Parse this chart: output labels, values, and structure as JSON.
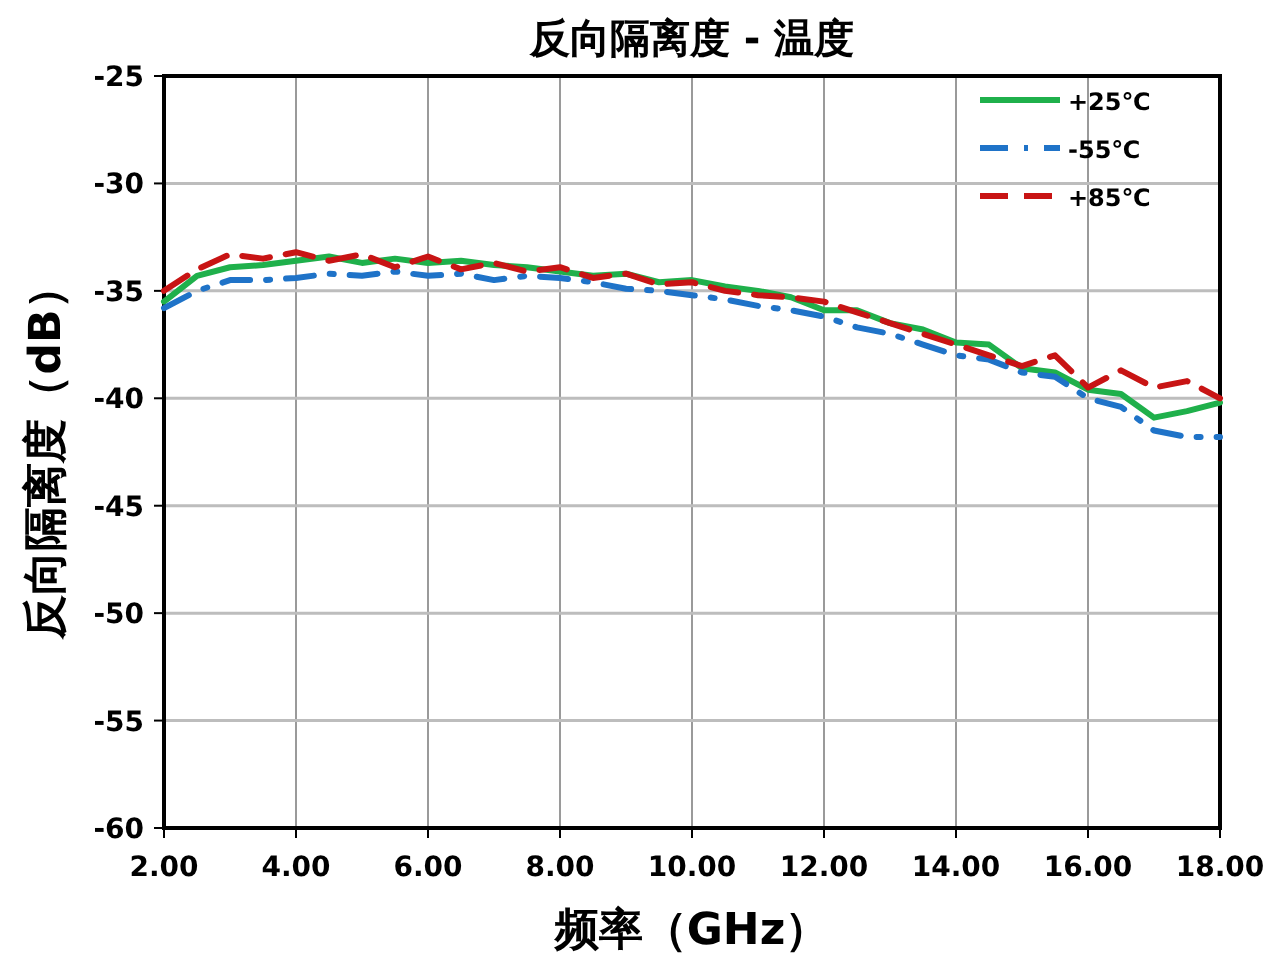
{
  "chart_data": {
    "type": "line",
    "title": "反向隔离度 - 温度",
    "xlabel": "频率（GHz）",
    "ylabel": "反向隔离度（dB）",
    "x": [
      2,
      2.5,
      3,
      3.5,
      4,
      4.5,
      5,
      5.5,
      6,
      6.5,
      7,
      7.5,
      8,
      8.5,
      9,
      9.5,
      10,
      10.5,
      11,
      11.5,
      12,
      12.5,
      13,
      13.5,
      14,
      14.5,
      15,
      15.5,
      16,
      16.5,
      17,
      17.5,
      18
    ],
    "series": [
      {
        "name": "+25℃",
        "color": "#1fb04b",
        "line_style": "solid",
        "values": [
          -35.5,
          -34.3,
          -33.9,
          -33.8,
          -33.6,
          -33.4,
          -33.7,
          -33.5,
          -33.7,
          -33.6,
          -33.8,
          -33.9,
          -34.1,
          -34.3,
          -34.2,
          -34.6,
          -34.5,
          -34.8,
          -35.0,
          -35.3,
          -35.9,
          -35.9,
          -36.5,
          -36.8,
          -37.4,
          -37.5,
          -38.6,
          -38.8,
          -39.6,
          -39.8,
          -40.9,
          -40.6,
          -40.2
        ]
      },
      {
        "name": "-55℃",
        "color": "#1f73c8",
        "line_style": "dashdot",
        "values": [
          -35.8,
          -35.0,
          -34.5,
          -34.5,
          -34.4,
          -34.2,
          -34.3,
          -34.1,
          -34.3,
          -34.2,
          -34.5,
          -34.3,
          -34.4,
          -34.6,
          -34.9,
          -35.0,
          -35.2,
          -35.4,
          -35.7,
          -35.9,
          -36.2,
          -36.7,
          -37.0,
          -37.5,
          -38.0,
          -38.2,
          -38.8,
          -39.0,
          -40.0,
          -40.4,
          -41.5,
          -41.8,
          -41.8
        ]
      },
      {
        "name": "+85℃",
        "color": "#c81414",
        "line_style": "dashed",
        "values": [
          -35.0,
          -34.0,
          -33.3,
          -33.5,
          -33.2,
          -33.6,
          -33.3,
          -33.9,
          -33.4,
          -34.0,
          -33.7,
          -34.1,
          -33.9,
          -34.4,
          -34.2,
          -34.7,
          -34.6,
          -35.0,
          -35.2,
          -35.3,
          -35.5,
          -36.0,
          -36.5,
          -37.0,
          -37.5,
          -38.0,
          -38.5,
          -38.0,
          -39.5,
          -38.7,
          -39.5,
          -39.2,
          -40.0
        ]
      }
    ],
    "xlim": [
      2,
      18
    ],
    "ylim": [
      -60,
      -25
    ],
    "xticks": [
      {
        "value": 2,
        "label": "2.00"
      },
      {
        "value": 4,
        "label": "4.00"
      },
      {
        "value": 6,
        "label": "6.00"
      },
      {
        "value": 8,
        "label": "8.00"
      },
      {
        "value": 10,
        "label": "10.00"
      },
      {
        "value": 12,
        "label": "12.00"
      },
      {
        "value": 14,
        "label": "14.00"
      },
      {
        "value": 16,
        "label": "16.00"
      },
      {
        "value": 18,
        "label": "18.00"
      }
    ],
    "yticks": [
      -60,
      -55,
      -50,
      -45,
      -40,
      -35,
      -30,
      -25
    ],
    "grid": true,
    "legend": "top right",
    "marker": "none"
  }
}
